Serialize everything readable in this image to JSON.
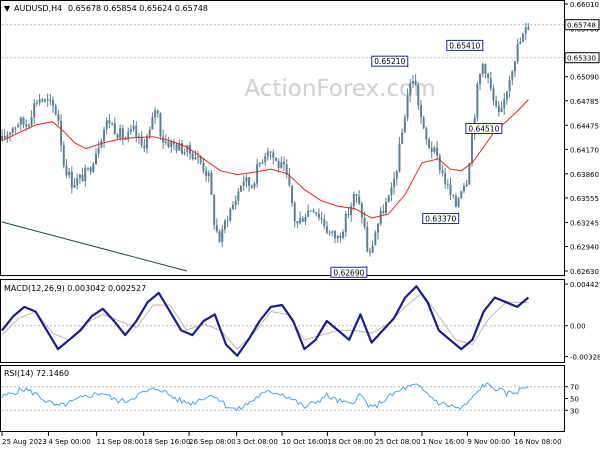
{
  "header": {
    "symbol": "AUDUSD,H4",
    "ohlc": "0.65678 0.65854 0.65624 0.65748"
  },
  "watermark": "ActionForex.com",
  "colors": {
    "candle": "#5b8096",
    "ma": "#e8261c",
    "macd_main": "#1b1c8e",
    "macd_signal": "#c4b4ba",
    "rsi": "#4aa4f0",
    "trendline": "#1d4f36",
    "frame": "#000000",
    "dotted": "#b8b8b8"
  },
  "chart_data": [
    {
      "type": "candlestick",
      "title": "AUDUSD,H4",
      "ylim": [
        0.6263,
        0.6601
      ],
      "ticks": [
        "0.66010",
        "0.65700",
        "0.65090",
        "0.64785",
        "0.64475",
        "0.64170",
        "0.63860",
        "0.63555",
        "0.63245",
        "0.62940",
        "0.62630"
      ],
      "price_labels": [
        {
          "label": "0.65748",
          "value": 0.65748,
          "boxed": true
        },
        {
          "label": "0.65330",
          "value": 0.6533,
          "boxed": true
        }
      ],
      "annotations": [
        {
          "label": "0.65210",
          "x": 0.721,
          "value": 0.6521,
          "place": "above"
        },
        {
          "label": "0.65410",
          "x": 0.855,
          "value": 0.6541,
          "place": "above"
        },
        {
          "label": "0.64510",
          "x": 0.889,
          "value": 0.6451,
          "place": "below"
        },
        {
          "label": "0.63370",
          "x": 0.812,
          "value": 0.6337,
          "place": "below"
        },
        {
          "label": "0.62690",
          "x": 0.648,
          "value": 0.6269,
          "place": "below"
        }
      ],
      "price_path": [
        [
          0.0,
          0.6428
        ],
        [
          0.015,
          0.6443
        ],
        [
          0.03,
          0.6452
        ],
        [
          0.045,
          0.6448
        ],
        [
          0.055,
          0.647
        ],
        [
          0.065,
          0.6483
        ],
        [
          0.075,
          0.6478
        ],
        [
          0.09,
          0.6472
        ],
        [
          0.1,
          0.646
        ],
        [
          0.11,
          0.64
        ],
        [
          0.125,
          0.6375
        ],
        [
          0.14,
          0.638
        ],
        [
          0.155,
          0.639
        ],
        [
          0.17,
          0.642
        ],
        [
          0.18,
          0.644
        ],
        [
          0.19,
          0.6455
        ],
        [
          0.205,
          0.644
        ],
        [
          0.22,
          0.643
        ],
        [
          0.235,
          0.644
        ],
        [
          0.25,
          0.642
        ],
        [
          0.265,
          0.644
        ],
        [
          0.275,
          0.6475
        ],
        [
          0.285,
          0.643
        ],
        [
          0.3,
          0.6425
        ],
        [
          0.315,
          0.642
        ],
        [
          0.33,
          0.6415
        ],
        [
          0.345,
          0.641
        ],
        [
          0.36,
          0.6395
        ],
        [
          0.37,
          0.638
        ],
        [
          0.38,
          0.632
        ],
        [
          0.39,
          0.63
        ],
        [
          0.4,
          0.633
        ],
        [
          0.415,
          0.635
        ],
        [
          0.43,
          0.638
        ],
        [
          0.445,
          0.637
        ],
        [
          0.46,
          0.64
        ],
        [
          0.475,
          0.642
        ],
        [
          0.49,
          0.64
        ],
        [
          0.505,
          0.639
        ],
        [
          0.515,
          0.636
        ],
        [
          0.525,
          0.632
        ],
        [
          0.54,
          0.6335
        ],
        [
          0.555,
          0.6345
        ],
        [
          0.57,
          0.633
        ],
        [
          0.585,
          0.631
        ],
        [
          0.6,
          0.6305
        ],
        [
          0.615,
          0.633
        ],
        [
          0.63,
          0.636
        ],
        [
          0.645,
          0.633
        ],
        [
          0.655,
          0.6275
        ],
        [
          0.665,
          0.631
        ],
        [
          0.68,
          0.634
        ],
        [
          0.695,
          0.636
        ],
        [
          0.705,
          0.6395
        ],
        [
          0.715,
          0.644
        ],
        [
          0.725,
          0.649
        ],
        [
          0.735,
          0.651
        ],
        [
          0.745,
          0.647
        ],
        [
          0.755,
          0.643
        ],
        [
          0.77,
          0.6415
        ],
        [
          0.78,
          0.64
        ],
        [
          0.79,
          0.638
        ],
        [
          0.8,
          0.636
        ],
        [
          0.81,
          0.6345
        ],
        [
          0.82,
          0.637
        ],
        [
          0.83,
          0.638
        ],
        [
          0.84,
          0.644
        ],
        [
          0.85,
          0.65
        ],
        [
          0.86,
          0.653
        ],
        [
          0.87,
          0.65
        ],
        [
          0.88,
          0.647
        ],
        [
          0.89,
          0.6455
        ],
        [
          0.9,
          0.649
        ],
        [
          0.91,
          0.652
        ],
        [
          0.92,
          0.6545
        ],
        [
          0.93,
          0.656
        ],
        [
          0.94,
          0.6574
        ]
      ],
      "ma_path": [
        [
          0.0,
          0.6428
        ],
        [
          0.03,
          0.6438
        ],
        [
          0.06,
          0.6448
        ],
        [
          0.09,
          0.6452
        ],
        [
          0.11,
          0.644
        ],
        [
          0.13,
          0.6425
        ],
        [
          0.15,
          0.6418
        ],
        [
          0.18,
          0.6425
        ],
        [
          0.21,
          0.643
        ],
        [
          0.24,
          0.6432
        ],
        [
          0.27,
          0.6433
        ],
        [
          0.3,
          0.6428
        ],
        [
          0.33,
          0.642
        ],
        [
          0.36,
          0.6405
        ],
        [
          0.39,
          0.639
        ],
        [
          0.42,
          0.6385
        ],
        [
          0.45,
          0.6388
        ],
        [
          0.48,
          0.6392
        ],
        [
          0.51,
          0.6386
        ],
        [
          0.54,
          0.6366
        ],
        [
          0.57,
          0.6352
        ],
        [
          0.6,
          0.6345
        ],
        [
          0.63,
          0.6342
        ],
        [
          0.66,
          0.633
        ],
        [
          0.69,
          0.6335
        ],
        [
          0.72,
          0.636
        ],
        [
          0.75,
          0.64
        ],
        [
          0.78,
          0.6405
        ],
        [
          0.8,
          0.6392
        ],
        [
          0.82,
          0.639
        ],
        [
          0.84,
          0.64
        ],
        [
          0.86,
          0.642
        ],
        [
          0.88,
          0.644
        ],
        [
          0.9,
          0.6452
        ],
        [
          0.92,
          0.6465
        ],
        [
          0.94,
          0.648
        ]
      ],
      "trendline": [
        [
          0.0,
          0.6325
        ],
        [
          0.33,
          0.6263
        ]
      ]
    },
    {
      "type": "line",
      "title": "MACD(12,26,9) 0.003042 0.002527",
      "ylim": [
        -0.00355,
        0.00455
      ],
      "ticks": [
        "0.004427",
        "0.00",
        "-0.003288"
      ],
      "main_path": [
        [
          0.0,
          -0.0005
        ],
        [
          0.02,
          0.001
        ],
        [
          0.04,
          0.002
        ],
        [
          0.06,
          0.0015
        ],
        [
          0.08,
          -0.0005
        ],
        [
          0.1,
          -0.0025
        ],
        [
          0.12,
          -0.0015
        ],
        [
          0.14,
          -0.0005
        ],
        [
          0.16,
          0.001
        ],
        [
          0.18,
          0.0018
        ],
        [
          0.2,
          0.0005
        ],
        [
          0.22,
          -0.001
        ],
        [
          0.24,
          0.0005
        ],
        [
          0.26,
          0.0025
        ],
        [
          0.28,
          0.0035
        ],
        [
          0.3,
          0.0015
        ],
        [
          0.32,
          -0.0005
        ],
        [
          0.34,
          -0.001
        ],
        [
          0.36,
          0.0005
        ],
        [
          0.38,
          0.0012
        ],
        [
          0.4,
          -0.002
        ],
        [
          0.42,
          -0.0032
        ],
        [
          0.44,
          -0.0015
        ],
        [
          0.46,
          0.0005
        ],
        [
          0.48,
          0.002
        ],
        [
          0.5,
          0.0022
        ],
        [
          0.52,
          0.0005
        ],
        [
          0.54,
          -0.0025
        ],
        [
          0.56,
          -0.0015
        ],
        [
          0.58,
          0.0005
        ],
        [
          0.6,
          -0.0005
        ],
        [
          0.62,
          -0.0015
        ],
        [
          0.64,
          0.0012
        ],
        [
          0.66,
          -0.0018
        ],
        [
          0.68,
          -0.0005
        ],
        [
          0.7,
          0.0008
        ],
        [
          0.72,
          0.003
        ],
        [
          0.74,
          0.0042
        ],
        [
          0.76,
          0.0025
        ],
        [
          0.78,
          -0.0005
        ],
        [
          0.8,
          -0.0015
        ],
        [
          0.82,
          -0.0025
        ],
        [
          0.84,
          -0.0015
        ],
        [
          0.86,
          0.0015
        ],
        [
          0.88,
          0.003
        ],
        [
          0.9,
          0.0025
        ],
        [
          0.92,
          0.002
        ],
        [
          0.94,
          0.003
        ]
      ],
      "signal_path": [
        [
          0.0,
          -0.001
        ],
        [
          0.03,
          0.0008
        ],
        [
          0.06,
          0.0015
        ],
        [
          0.09,
          -0.0008
        ],
        [
          0.12,
          -0.0015
        ],
        [
          0.15,
          0.0003
        ],
        [
          0.18,
          0.0012
        ],
        [
          0.21,
          0.0005
        ],
        [
          0.24,
          -0.0002
        ],
        [
          0.27,
          0.0022
        ],
        [
          0.3,
          0.0022
        ],
        [
          0.33,
          -0.0005
        ],
        [
          0.36,
          0.0002
        ],
        [
          0.39,
          -0.0005
        ],
        [
          0.42,
          -0.0025
        ],
        [
          0.45,
          -0.0008
        ],
        [
          0.48,
          0.0015
        ],
        [
          0.51,
          0.0012
        ],
        [
          0.54,
          -0.0015
        ],
        [
          0.57,
          -0.001
        ],
        [
          0.6,
          -0.0005
        ],
        [
          0.63,
          -0.0005
        ],
        [
          0.66,
          -0.0008
        ],
        [
          0.69,
          0.0002
        ],
        [
          0.72,
          0.002
        ],
        [
          0.75,
          0.0035
        ],
        [
          0.78,
          0.001
        ],
        [
          0.81,
          -0.0015
        ],
        [
          0.84,
          -0.002
        ],
        [
          0.87,
          0.0008
        ],
        [
          0.9,
          0.0025
        ],
        [
          0.94,
          0.0025
        ]
      ]
    },
    {
      "type": "line",
      "title": "RSI(14) 72.1460",
      "ylim": [
        0,
        100
      ],
      "ticks": [
        "70",
        "50",
        "30"
      ],
      "rsi_path": [
        [
          0.0,
          52
        ],
        [
          0.02,
          60
        ],
        [
          0.04,
          66
        ],
        [
          0.06,
          58
        ],
        [
          0.08,
          45
        ],
        [
          0.1,
          36
        ],
        [
          0.12,
          42
        ],
        [
          0.14,
          50
        ],
        [
          0.16,
          56
        ],
        [
          0.18,
          60
        ],
        [
          0.2,
          48
        ],
        [
          0.22,
          45
        ],
        [
          0.24,
          55
        ],
        [
          0.26,
          62
        ],
        [
          0.28,
          68
        ],
        [
          0.3,
          55
        ],
        [
          0.32,
          45
        ],
        [
          0.34,
          42
        ],
        [
          0.36,
          52
        ],
        [
          0.38,
          56
        ],
        [
          0.4,
          38
        ],
        [
          0.42,
          30
        ],
        [
          0.44,
          42
        ],
        [
          0.46,
          55
        ],
        [
          0.48,
          62
        ],
        [
          0.5,
          58
        ],
        [
          0.52,
          48
        ],
        [
          0.54,
          35
        ],
        [
          0.56,
          44
        ],
        [
          0.58,
          55
        ],
        [
          0.6,
          46
        ],
        [
          0.62,
          40
        ],
        [
          0.64,
          56
        ],
        [
          0.66,
          32
        ],
        [
          0.68,
          46
        ],
        [
          0.7,
          58
        ],
        [
          0.72,
          68
        ],
        [
          0.74,
          72
        ],
        [
          0.76,
          58
        ],
        [
          0.78,
          42
        ],
        [
          0.8,
          38
        ],
        [
          0.82,
          32
        ],
        [
          0.84,
          50
        ],
        [
          0.86,
          74
        ],
        [
          0.88,
          68
        ],
        [
          0.9,
          58
        ],
        [
          0.92,
          62
        ],
        [
          0.94,
          72
        ]
      ]
    }
  ],
  "x_labels": [
    {
      "label": "25 Aug 2023",
      "x": 0.0
    },
    {
      "label": "4 Sep 00:00",
      "x": 0.083
    },
    {
      "label": "11 Sep 08:00",
      "x": 0.169
    },
    {
      "label": "18 Sep 16:00",
      "x": 0.253
    },
    {
      "label": "26 Sep 08:00",
      "x": 0.334
    },
    {
      "label": "3 Oct 08:00",
      "x": 0.419
    },
    {
      "label": "10 Oct 16:00",
      "x": 0.5
    },
    {
      "label": "18 Oct 08:00",
      "x": 0.581
    },
    {
      "label": "25 Oct 08:00",
      "x": 0.666
    },
    {
      "label": "1 Nov 16:00",
      "x": 0.75
    },
    {
      "label": "9 Nov 00:00",
      "x": 0.831
    },
    {
      "label": "16 Nov 08:00",
      "x": 0.915
    }
  ]
}
